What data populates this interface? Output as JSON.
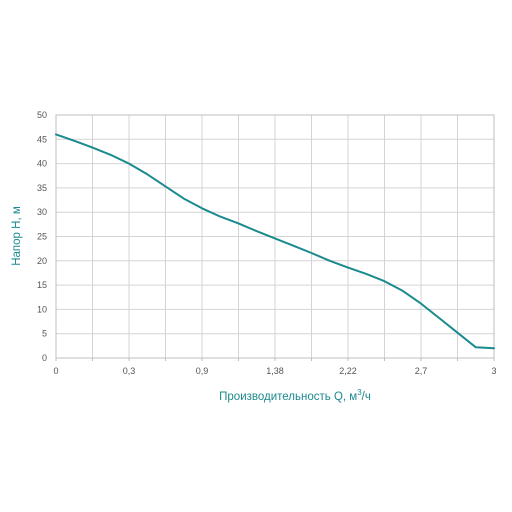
{
  "chart_data": {
    "type": "line",
    "xlabel": "Производительность Q, м",
    "xlabel_sup": "3",
    "xlabel_tail": "/ч",
    "ylabel": "Напор H, м",
    "x_ticks": [
      "0",
      "0,3",
      "0,9",
      "1,38",
      "2,22",
      "2,7",
      "3"
    ],
    "y_ticks": [
      "0",
      "5",
      "10",
      "15",
      "20",
      "25",
      "30",
      "35",
      "40",
      "45",
      "50"
    ],
    "ylim": [
      0,
      50
    ],
    "x_gridlines": 12,
    "grid": true,
    "series": [
      {
        "x": [
          0,
          0.5,
          1,
          1.5,
          2,
          2.5,
          3,
          3.5,
          4,
          4.5,
          5,
          5.5,
          6,
          6.5,
          7,
          7.5,
          8,
          8.5,
          9,
          9.5,
          10,
          10.5,
          11,
          11.5,
          12
        ],
        "y": [
          46,
          44.7,
          43.3,
          41.8,
          40,
          37.8,
          35.3,
          32.8,
          30.8,
          29.1,
          27.7,
          26.1,
          24.6,
          23.1,
          21.6,
          20,
          18.6,
          17.3,
          15.8,
          13.8,
          11.2,
          8.2,
          5.2,
          2.2,
          2
        ]
      }
    ],
    "colors": {
      "line": "#1a8a8f",
      "axis_title": "#1a8a8f",
      "grid": "#d4d4d4",
      "frame": "#bfbfbf"
    }
  }
}
